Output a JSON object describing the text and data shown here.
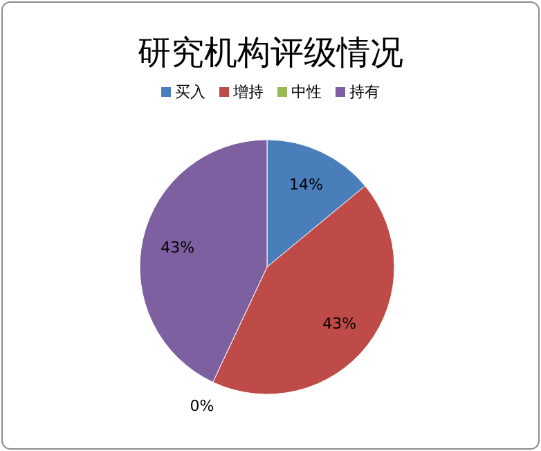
{
  "chart_data": {
    "type": "pie",
    "title": "研究机构评级情况",
    "categories": [
      "买入",
      "增持",
      "中性",
      "持有"
    ],
    "values": [
      14,
      43,
      0,
      43
    ],
    "colors": [
      "#4a7ebb",
      "#be4b48",
      "#98b954",
      "#7d60a0"
    ],
    "value_labels": [
      "14%",
      "43%",
      "0%",
      "43%"
    ],
    "legend": "top"
  }
}
